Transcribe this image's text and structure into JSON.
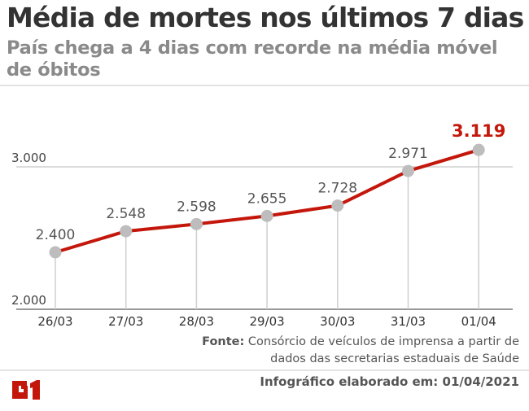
{
  "header": {
    "title": "Média de mortes nos últimos 7 dias",
    "subtitle": "País chega a 4 dias com recorde na média móvel de óbitos"
  },
  "chart_data": {
    "type": "line",
    "categories": [
      "26/03",
      "27/03",
      "28/03",
      "29/03",
      "30/03",
      "31/03",
      "01/04"
    ],
    "values": [
      2400,
      2548,
      2598,
      2655,
      2728,
      2971,
      3119
    ],
    "value_labels": [
      "2.400",
      "2.548",
      "2.598",
      "2.655",
      "2.728",
      "2.971",
      "3.119"
    ],
    "y_ticks": [
      2000,
      3000
    ],
    "y_tick_labels": [
      "2.000",
      "3.000"
    ],
    "ylim": [
      2000,
      3119
    ],
    "grid": true,
    "line_color": "#c4170c",
    "marker_color": "#bdbdbd",
    "highlight_color": "#c4170c",
    "highlight_last": true
  },
  "source": {
    "label": "Fonte:",
    "text": " Consórcio de veículos de imprensa a partir de dados das secretarias estaduais de Saúde"
  },
  "footer": {
    "text": "Infográfico elaborado em: 01/04/2021",
    "logo": "G1"
  }
}
